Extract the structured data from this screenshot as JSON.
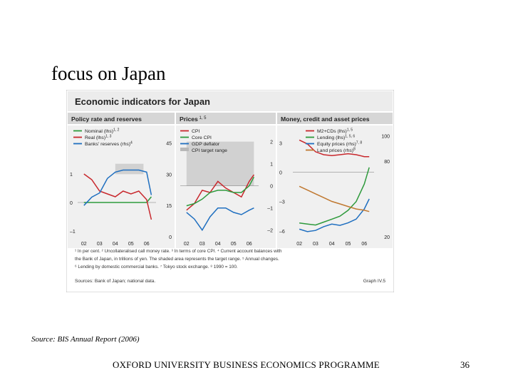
{
  "slide": {
    "title": "focus on Japan",
    "source": "Source: BIS Annual Report (2006)",
    "footer": "OXFORD UNIVERSITY BUSINESS ECONOMICS PROGRAMME",
    "page_number": "36"
  },
  "figure": {
    "title": "Economic indicators for Japan",
    "graph_ref": "Graph IV.5",
    "footnote_lines": [
      "¹ In per cent.   ² Uncollateralised call money rate.   ³ In terms of core CPI.   ⁴ Current account balances with",
      "the Bank of Japan, in trillions of yen. The shaded area represents the target range.   ⁵ Annual changes.",
      "⁶ Lending by domestic commercial banks.   ⁷ Tokyo stock exchange.   ⁸ 1990 = 100."
    ],
    "sources": "Sources: Bank of Japan; national data.",
    "colors": {
      "green": "#2e9a3c",
      "red": "#c8282d",
      "blue": "#1f6fc0",
      "lightblue": "#a9c7e6",
      "brown": "#c07830",
      "gray": "#b8b8b8",
      "panel_bg": "#f0f0f0",
      "header_bg": "#d6d6d6"
    }
  },
  "chart_data": [
    {
      "type": "line",
      "title": "Policy rate and reserves",
      "x_ticks": [
        "02",
        "03",
        "04",
        "05",
        "06"
      ],
      "x": [
        2002.0,
        2002.5,
        2003.0,
        2003.5,
        2004.0,
        2004.5,
        2005.0,
        2005.5,
        2006.0,
        2006.3
      ],
      "left_axis": {
        "ticks": [
          "1",
          "0",
          "–1"
        ],
        "ylim": [
          -1.2,
          2.6
        ]
      },
      "right_axis": {
        "ticks": [
          "45",
          "30",
          "15",
          "0"
        ],
        "ylim": [
          0,
          52
        ]
      },
      "series": [
        {
          "name": "Nominal (lhs)",
          "sup": "1, 2",
          "axis": "left",
          "color": "green",
          "values": [
            0.0,
            0.0,
            0.0,
            0.0,
            0.0,
            0.0,
            0.0,
            0.0,
            0.0,
            0.2
          ]
        },
        {
          "name": "Real (lhs)",
          "sup": "1, 3",
          "axis": "left",
          "color": "red",
          "values": [
            1.0,
            0.8,
            0.4,
            0.3,
            0.2,
            0.4,
            0.3,
            0.4,
            0.1,
            -0.6
          ]
        },
        {
          "name": "Banks' reserves (rhs)",
          "sup": "4",
          "axis": "right",
          "color": "blue",
          "values": [
            15,
            19,
            21,
            28,
            31,
            32,
            32,
            32,
            31,
            20
          ]
        }
      ],
      "bands": [
        {
          "label": "target range",
          "axis": "right",
          "x": [
            2004.0,
            2005.8
          ],
          "y": [
            30,
            35
          ]
        }
      ]
    },
    {
      "type": "line",
      "title": "Prices",
      "sup": "1, 5",
      "x_ticks": [
        "02",
        "03",
        "04",
        "05",
        "06"
      ],
      "x": [
        2002.0,
        2002.5,
        2003.0,
        2003.5,
        2004.0,
        2004.5,
        2005.0,
        2005.5,
        2006.0,
        2006.3
      ],
      "y_axis": {
        "ticks": [
          "2",
          "1",
          "0",
          "–1",
          "–2"
        ],
        "ylim": [
          -2.3,
          2.6
        ]
      },
      "series": [
        {
          "name": "CPI",
          "color": "red",
          "values": [
            -1.1,
            -0.8,
            -0.2,
            -0.3,
            0.2,
            -0.1,
            -0.3,
            -0.5,
            0.2,
            0.5
          ]
        },
        {
          "name": "Core CPI",
          "color": "green",
          "values": [
            -0.9,
            -0.8,
            -0.6,
            -0.3,
            -0.2,
            -0.2,
            -0.3,
            -0.3,
            0.0,
            0.4
          ]
        },
        {
          "name": "GDP deflator",
          "color": "blue",
          "values": [
            -1.2,
            -1.5,
            -2.0,
            -1.4,
            -1.0,
            -1.0,
            -1.2,
            -1.3,
            -1.1,
            -1.0
          ]
        }
      ],
      "bands": [
        {
          "label": "CPI target range",
          "x": [
            2002.0,
            2006.3
          ],
          "y": [
            0,
            2
          ]
        }
      ]
    },
    {
      "type": "line",
      "title": "Money, credit and asset prices",
      "x_ticks": [
        "02",
        "03",
        "04",
        "05",
        "06"
      ],
      "x": [
        2002.0,
        2002.5,
        2003.0,
        2003.5,
        2004.0,
        2004.5,
        2005.0,
        2005.5,
        2006.0,
        2006.3
      ],
      "left_axis": {
        "ticks": [
          "3",
          "0",
          "–3",
          "–6"
        ],
        "ylim": [
          -6.6,
          4.5
        ]
      },
      "right_axis": {
        "ticks": [
          "100",
          "80",
          "20"
        ],
        "ylim": [
          20,
          106
        ]
      },
      "series": [
        {
          "name": "M2+CDs (lhs)",
          "sup": "1, 5",
          "axis": "left",
          "color": "red",
          "values": [
            3.3,
            2.9,
            2.1,
            1.8,
            1.7,
            1.8,
            1.9,
            1.8,
            1.6,
            1.6
          ]
        },
        {
          "name": "Lending (lhs)",
          "sup": "1, 5, 6",
          "axis": "left",
          "color": "green",
          "values": [
            -5.2,
            -5.3,
            -5.4,
            -5.1,
            -4.8,
            -4.5,
            -3.9,
            -3.0,
            -1.2,
            0.5
          ]
        },
        {
          "name": "Equity prices (rhs)",
          "sup": "7, 8",
          "axis": "right",
          "color": "blue",
          "values": [
            26,
            24,
            25,
            28,
            30,
            29,
            31,
            34,
            42,
            50
          ]
        },
        {
          "name": "Land prices (rhs)",
          "sup": "8",
          "axis": "right",
          "color": "brown",
          "values": [
            60,
            57,
            54,
            51,
            48,
            46,
            44,
            42,
            41,
            40
          ]
        }
      ]
    }
  ]
}
